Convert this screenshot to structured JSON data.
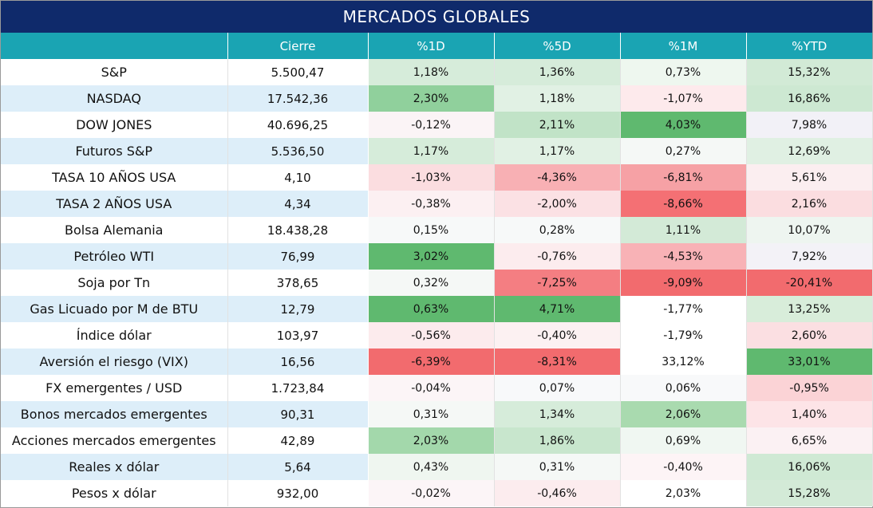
{
  "title": "MERCADOS GLOBALES",
  "headers": [
    "",
    "Cierre",
    "%1D",
    "%5D",
    "%1M",
    "%YTD"
  ],
  "colors": {
    "title_bg": "#0f2a6b",
    "header_bg": "#1aa4b3",
    "row_alt_bg": "#ddeef9",
    "positive_strong": "#5fb96f",
    "negative_strong": "#f26b6e"
  },
  "rows": [
    {
      "name": "S&P",
      "close": "5.500,47",
      "d1": "1,18%",
      "d5": "1,36%",
      "m1": "0,73%",
      "ytd": "15,32%",
      "c": [
        "#d6ecda",
        "#d6ecda",
        "#eef7ef",
        "#d2ead6"
      ]
    },
    {
      "name": "NASDAQ",
      "close": "17.542,36",
      "d1": "2,30%",
      "d5": "1,18%",
      "m1": "-1,07%",
      "ytd": "16,86%",
      "c": [
        "#90d09c",
        "#e1f1e4",
        "#fdeaec",
        "#cde8d2"
      ]
    },
    {
      "name": "DOW JONES",
      "close": "40.696,25",
      "d1": "-0,12%",
      "d5": "2,11%",
      "m1": "4,03%",
      "ytd": "7,98%",
      "c": [
        "#fbf4f6",
        "#c1e3c7",
        "#5fb96f",
        "#f2f1f7"
      ]
    },
    {
      "name": "Futuros S&P",
      "close": "5.536,50",
      "d1": "1,17%",
      "d5": "1,17%",
      "m1": "0,27%",
      "ytd": "12,69%",
      "c": [
        "#d6ecda",
        "#e1f1e4",
        "#f5f8f6",
        "#e0f0e3"
      ]
    },
    {
      "name": "TASA 10 AÑOS USA",
      "close": "4,10",
      "d1": "-1,03%",
      "d5": "-4,36%",
      "m1": "-6,81%",
      "ytd": "5,61%",
      "c": [
        "#fbdde0",
        "#f8b0b4",
        "#f6a1a5",
        "#fbeef0"
      ]
    },
    {
      "name": "TASA 2 AÑOS USA",
      "close": "4,34",
      "d1": "-0,38%",
      "d5": "-2,00%",
      "m1": "-8,66%",
      "ytd": "2,16%",
      "c": [
        "#fcf0f2",
        "#fbe1e4",
        "#f47074",
        "#fbdde0"
      ]
    },
    {
      "name": "Bolsa Alemania",
      "close": "18.438,28",
      "d1": "0,15%",
      "d5": "0,28%",
      "m1": "1,11%",
      "ytd": "10,07%",
      "c": [
        "#f7f9f9",
        "#f7f9f9",
        "#d3ead7",
        "#eef5f0"
      ]
    },
    {
      "name": "Petróleo WTI",
      "close": "76,99",
      "d1": "3,02%",
      "d5": "-0,76%",
      "m1": "-4,53%",
      "ytd": "7,92%",
      "c": [
        "#5fb96f",
        "#fcecee",
        "#f8b2b6",
        "#f3f2f7"
      ]
    },
    {
      "name": "Soja por Tn",
      "close": "378,65",
      "d1": "0,32%",
      "d5": "-7,25%",
      "m1": "-9,09%",
      "ytd": "-20,41%",
      "c": [
        "#f5f8f6",
        "#f47e82",
        "#f26b6e",
        "#f26b6e"
      ]
    },
    {
      "name": "Gas Licuado por M de BTU",
      "close": "12,79",
      "d1": "0,63%",
      "d5": "4,71%",
      "m1": "-1,77%",
      "ytd": "13,25%",
      "c": [
        "#5fb96f",
        "#5fb96f",
        "#ffffff",
        "#d8edda"
      ]
    },
    {
      "name": "Índice dólar",
      "close": "103,97",
      "d1": "-0,56%",
      "d5": "-0,40%",
      "m1": "-1,79%",
      "ytd": "2,60%",
      "c": [
        "#fcebed",
        "#fcf1f2",
        "#ffffff",
        "#fbdfe2"
      ]
    },
    {
      "name": "Aversión el riesgo (VIX)",
      "close": "16,56",
      "d1": "-6,39%",
      "d5": "-8,31%",
      "m1": "33,12%",
      "ytd": "33,01%",
      "c": [
        "#f26b6e",
        "#f26b6e",
        "#ffffff",
        "#5fb96f"
      ]
    },
    {
      "name": "FX emergentes / USD",
      "close": "1.723,84",
      "d1": "-0,04%",
      "d5": "0,07%",
      "m1": "0,06%",
      "ytd": "-0,95%",
      "c": [
        "#fcf5f7",
        "#f8f9fa",
        "#f8f9fa",
        "#fbd3d6"
      ]
    },
    {
      "name": "Bonos mercados emergentes",
      "close": "90,31",
      "d1": "0,31%",
      "d5": "1,34%",
      "m1": "2,06%",
      "ytd": "1,40%",
      "c": [
        "#f5f8f6",
        "#d6ecda",
        "#a9daaf",
        "#fde4e7"
      ]
    },
    {
      "name": "Acciones mercados emergentes",
      "close": "42,89",
      "d1": "2,03%",
      "d5": "1,86%",
      "m1": "0,69%",
      "ytd": "6,65%",
      "c": [
        "#a3d8ab",
        "#c8e6cd",
        "#f0f7f2",
        "#fbf1f3"
      ]
    },
    {
      "name": "Reales x dólar",
      "close": "5,64",
      "d1": "0,43%",
      "d5": "0,31%",
      "m1": "-0,40%",
      "ytd": "16,06%",
      "c": [
        "#eff6f0",
        "#f5f8f6",
        "#fdf4f6",
        "#cfe9d4"
      ]
    },
    {
      "name": "Pesos x dólar",
      "close": "932,00",
      "d1": "-0,02%",
      "d5": "-0,46%",
      "m1": "2,03%",
      "ytd": "15,28%",
      "c": [
        "#fcf5f7",
        "#fcecee",
        "#ffffff",
        "#d3ead7"
      ]
    }
  ]
}
